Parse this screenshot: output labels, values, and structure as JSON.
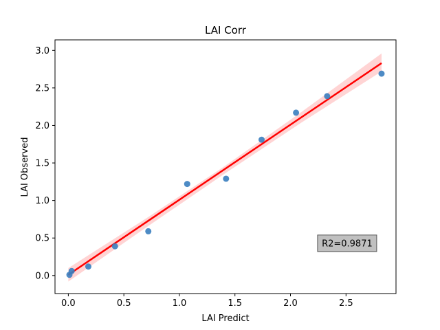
{
  "chart_data": {
    "type": "scatter",
    "title": "LAI Corr",
    "xlabel": "LAI Predict",
    "ylabel": "LAI Observed",
    "xlim": [
      -0.12,
      2.95
    ],
    "ylim": [
      -0.24,
      3.14
    ],
    "xticks": [
      0.0,
      0.5,
      1.0,
      1.5,
      2.0,
      2.5
    ],
    "yticks": [
      0.0,
      0.5,
      1.0,
      1.5,
      2.0,
      2.5,
      3.0
    ],
    "xtick_labels": [
      "0.0",
      "0.5",
      "1.0",
      "1.5",
      "2.0",
      "2.5"
    ],
    "ytick_labels": [
      "0.0",
      "0.5",
      "1.0",
      "1.5",
      "2.0",
      "2.5",
      "3.0"
    ],
    "grid": false,
    "points": [
      {
        "x": 0.01,
        "y": 0.01
      },
      {
        "x": 0.03,
        "y": 0.06
      },
      {
        "x": 0.18,
        "y": 0.12
      },
      {
        "x": 0.42,
        "y": 0.39
      },
      {
        "x": 0.72,
        "y": 0.59
      },
      {
        "x": 1.07,
        "y": 1.22
      },
      {
        "x": 1.42,
        "y": 1.29
      },
      {
        "x": 1.74,
        "y": 1.81
      },
      {
        "x": 2.05,
        "y": 2.17
      },
      {
        "x": 2.33,
        "y": 2.39
      },
      {
        "x": 2.82,
        "y": 2.69
      }
    ],
    "regression": {
      "x": [
        0.0,
        2.82
      ],
      "y": [
        0.01,
        2.83
      ],
      "band": [
        {
          "x": 0.0,
          "lo": -0.08,
          "hi": 0.1
        },
        {
          "x": 0.7,
          "lo": 0.64,
          "hi": 0.76
        },
        {
          "x": 1.4,
          "lo": 1.35,
          "hi": 1.45
        },
        {
          "x": 2.1,
          "lo": 2.04,
          "hi": 2.18
        },
        {
          "x": 2.82,
          "lo": 2.72,
          "hi": 2.96
        }
      ]
    },
    "annotation": {
      "text": "R2=0.9871",
      "x": 2.51,
      "y": 0.43
    },
    "colors": {
      "points": "#3a7ebf",
      "line": "#ff0000",
      "band": "#ffb0b0",
      "annotation_bg": "#c0c0c0",
      "annotation_border": "#555555"
    }
  }
}
